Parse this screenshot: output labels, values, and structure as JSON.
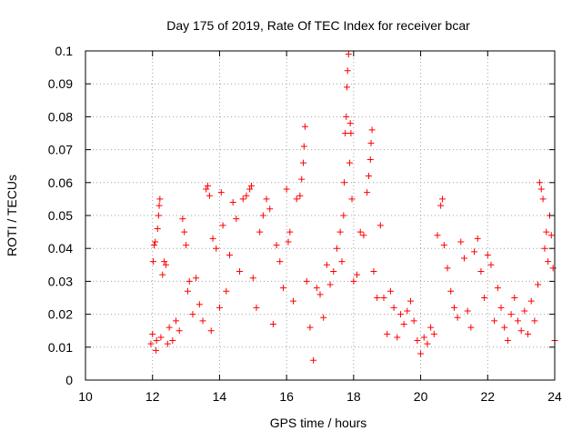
{
  "chart_data": {
    "type": "scatter",
    "title": "Day 175 of 2019, Rate Of TEC Index for receiver bcar",
    "xlabel": "GPS time / hours",
    "ylabel": "ROTI / TECUs",
    "xlim": [
      10,
      24
    ],
    "ylim": [
      0,
      0.1
    ],
    "x_ticks": [
      10,
      12,
      14,
      16,
      18,
      20,
      22,
      24
    ],
    "x_tick_labels": [
      "10",
      "12",
      "14",
      "16",
      "18",
      "20",
      "22",
      "24"
    ],
    "y_ticks": [
      0,
      0.01,
      0.02,
      0.03,
      0.04,
      0.05,
      0.06,
      0.07,
      0.08,
      0.09,
      0.1
    ],
    "y_tick_labels": [
      "0",
      "0.01",
      "0.02",
      "0.03",
      "0.04",
      "0.05",
      "0.06",
      "0.07",
      "0.08",
      "0.09",
      "0.1"
    ],
    "grid": true,
    "marker": "+",
    "series": [
      {
        "name": "ROTI",
        "color": "#ff0000",
        "points": [
          [
            11.95,
            0.011
          ],
          [
            12.0,
            0.014
          ],
          [
            12.02,
            0.036
          ],
          [
            12.05,
            0.041
          ],
          [
            12.08,
            0.042
          ],
          [
            12.1,
            0.009
          ],
          [
            12.12,
            0.012
          ],
          [
            12.15,
            0.046
          ],
          [
            12.18,
            0.05
          ],
          [
            12.2,
            0.053
          ],
          [
            12.22,
            0.055
          ],
          [
            12.25,
            0.013
          ],
          [
            12.3,
            0.032
          ],
          [
            12.35,
            0.036
          ],
          [
            12.4,
            0.035
          ],
          [
            12.45,
            0.011
          ],
          [
            12.5,
            0.016
          ],
          [
            12.6,
            0.012
          ],
          [
            12.7,
            0.018
          ],
          [
            12.8,
            0.015
          ],
          [
            12.9,
            0.049
          ],
          [
            12.95,
            0.045
          ],
          [
            13.0,
            0.041
          ],
          [
            13.05,
            0.027
          ],
          [
            13.1,
            0.03
          ],
          [
            13.2,
            0.02
          ],
          [
            13.3,
            0.031
          ],
          [
            13.4,
            0.023
          ],
          [
            13.5,
            0.018
          ],
          [
            13.6,
            0.058
          ],
          [
            13.65,
            0.059
          ],
          [
            13.7,
            0.056
          ],
          [
            13.75,
            0.015
          ],
          [
            13.8,
            0.043
          ],
          [
            13.9,
            0.04
          ],
          [
            14.0,
            0.022
          ],
          [
            14.05,
            0.057
          ],
          [
            14.1,
            0.047
          ],
          [
            14.2,
            0.027
          ],
          [
            14.3,
            0.038
          ],
          [
            14.4,
            0.054
          ],
          [
            14.5,
            0.049
          ],
          [
            14.6,
            0.033
          ],
          [
            14.7,
            0.055
          ],
          [
            14.8,
            0.056
          ],
          [
            14.9,
            0.058
          ],
          [
            14.95,
            0.059
          ],
          [
            15.0,
            0.031
          ],
          [
            15.1,
            0.022
          ],
          [
            15.2,
            0.045
          ],
          [
            15.3,
            0.05
          ],
          [
            15.4,
            0.055
          ],
          [
            15.5,
            0.052
          ],
          [
            15.6,
            0.017
          ],
          [
            15.7,
            0.041
          ],
          [
            15.8,
            0.036
          ],
          [
            15.9,
            0.028
          ],
          [
            16.0,
            0.058
          ],
          [
            16.05,
            0.042
          ],
          [
            16.1,
            0.045
          ],
          [
            16.2,
            0.024
          ],
          [
            16.3,
            0.055
          ],
          [
            16.4,
            0.056
          ],
          [
            16.45,
            0.061
          ],
          [
            16.5,
            0.066
          ],
          [
            16.52,
            0.071
          ],
          [
            16.55,
            0.077
          ],
          [
            16.6,
            0.03
          ],
          [
            16.7,
            0.016
          ],
          [
            16.8,
            0.006
          ],
          [
            16.9,
            0.028
          ],
          [
            17.0,
            0.026
          ],
          [
            17.1,
            0.019
          ],
          [
            17.2,
            0.035
          ],
          [
            17.3,
            0.029
          ],
          [
            17.4,
            0.033
          ],
          [
            17.5,
            0.04
          ],
          [
            17.6,
            0.045
          ],
          [
            17.65,
            0.036
          ],
          [
            17.7,
            0.05
          ],
          [
            17.72,
            0.06
          ],
          [
            17.75,
            0.075
          ],
          [
            17.78,
            0.08
          ],
          [
            17.8,
            0.089
          ],
          [
            17.82,
            0.094
          ],
          [
            17.85,
            0.099
          ],
          [
            17.88,
            0.066
          ],
          [
            17.9,
            0.078
          ],
          [
            17.92,
            0.075
          ],
          [
            17.95,
            0.055
          ],
          [
            18.0,
            0.03
          ],
          [
            18.1,
            0.032
          ],
          [
            18.2,
            0.045
          ],
          [
            18.3,
            0.044
          ],
          [
            18.4,
            0.057
          ],
          [
            18.45,
            0.062
          ],
          [
            18.5,
            0.067
          ],
          [
            18.52,
            0.072
          ],
          [
            18.55,
            0.076
          ],
          [
            18.6,
            0.033
          ],
          [
            18.7,
            0.025
          ],
          [
            18.8,
            0.047
          ],
          [
            18.9,
            0.025
          ],
          [
            19.0,
            0.014
          ],
          [
            19.1,
            0.027
          ],
          [
            19.2,
            0.022
          ],
          [
            19.3,
            0.013
          ],
          [
            19.4,
            0.02
          ],
          [
            19.5,
            0.017
          ],
          [
            19.6,
            0.021
          ],
          [
            19.7,
            0.024
          ],
          [
            19.8,
            0.018
          ],
          [
            19.9,
            0.012
          ],
          [
            20.0,
            0.008
          ],
          [
            20.1,
            0.013
          ],
          [
            20.2,
            0.011
          ],
          [
            20.3,
            0.016
          ],
          [
            20.4,
            0.014
          ],
          [
            20.5,
            0.044
          ],
          [
            20.6,
            0.053
          ],
          [
            20.65,
            0.055
          ],
          [
            20.7,
            0.041
          ],
          [
            20.8,
            0.034
          ],
          [
            20.9,
            0.027
          ],
          [
            21.0,
            0.022
          ],
          [
            21.1,
            0.019
          ],
          [
            21.2,
            0.042
          ],
          [
            21.3,
            0.037
          ],
          [
            21.4,
            0.021
          ],
          [
            21.5,
            0.016
          ],
          [
            21.6,
            0.039
          ],
          [
            21.7,
            0.043
          ],
          [
            21.8,
            0.033
          ],
          [
            21.9,
            0.025
          ],
          [
            22.0,
            0.038
          ],
          [
            22.1,
            0.035
          ],
          [
            22.2,
            0.018
          ],
          [
            22.3,
            0.028
          ],
          [
            22.4,
            0.022
          ],
          [
            22.5,
            0.016
          ],
          [
            22.6,
            0.012
          ],
          [
            22.7,
            0.02
          ],
          [
            22.8,
            0.025
          ],
          [
            22.9,
            0.018
          ],
          [
            23.0,
            0.015
          ],
          [
            23.1,
            0.021
          ],
          [
            23.2,
            0.014
          ],
          [
            23.3,
            0.024
          ],
          [
            23.4,
            0.018
          ],
          [
            23.5,
            0.029
          ],
          [
            23.55,
            0.06
          ],
          [
            23.6,
            0.058
          ],
          [
            23.65,
            0.055
          ],
          [
            23.7,
            0.04
          ],
          [
            23.75,
            0.045
          ],
          [
            23.8,
            0.036
          ],
          [
            23.85,
            0.05
          ],
          [
            23.9,
            0.044
          ],
          [
            23.95,
            0.034
          ],
          [
            24.0,
            0.012
          ]
        ]
      }
    ]
  }
}
